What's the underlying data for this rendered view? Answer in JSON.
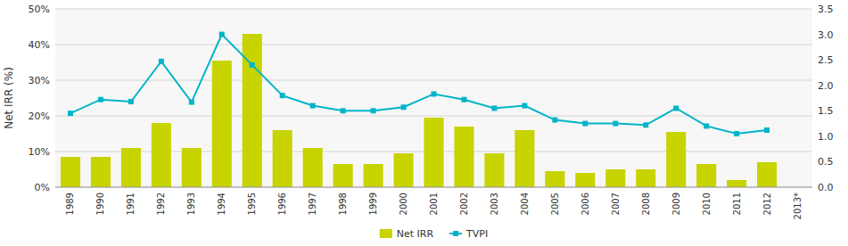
{
  "chart_data": {
    "type": "bar",
    "ylabel": "Net IRR (%)",
    "categories": [
      "1989",
      "1990",
      "1991",
      "1992",
      "1993",
      "1994",
      "1995",
      "1996",
      "1997",
      "1998",
      "1999",
      "2000",
      "2001",
      "2002",
      "2003",
      "2004",
      "2005",
      "2006",
      "2007",
      "2008",
      "2009",
      "2010",
      "2011",
      "2012",
      "2013*"
    ],
    "series": [
      {
        "name": "Net IRR",
        "type": "bar",
        "color": "#c8d400",
        "values": [
          8.5,
          8.5,
          11.0,
          18.0,
          11.0,
          35.5,
          43.0,
          16.0,
          11.0,
          6.5,
          6.5,
          9.5,
          19.5,
          17.0,
          9.5,
          16.0,
          4.5,
          4.0,
          5.0,
          5.0,
          15.5,
          6.5,
          2.0,
          7.0,
          null
        ]
      },
      {
        "name": "TVPI",
        "type": "line",
        "axis": "y2",
        "color": "#00b4c8",
        "marker": "square",
        "values": [
          1.45,
          1.72,
          1.68,
          2.47,
          1.67,
          3.0,
          2.4,
          1.8,
          1.6,
          1.5,
          1.5,
          1.57,
          1.83,
          1.72,
          1.55,
          1.6,
          1.32,
          1.25,
          1.25,
          1.22,
          1.55,
          1.2,
          1.05,
          1.12,
          null
        ]
      }
    ],
    "ylim": [
      0,
      50
    ],
    "yticks": [
      {
        "value": 0,
        "label": "0%"
      },
      {
        "value": 10,
        "label": "10%"
      },
      {
        "value": 20,
        "label": "20%"
      },
      {
        "value": 30,
        "label": "30%"
      },
      {
        "value": 40,
        "label": "40%"
      },
      {
        "value": 50,
        "label": "50%"
      }
    ],
    "y2lim": [
      0.0,
      3.5
    ],
    "y2ticks": [
      {
        "value": 0.0,
        "label": "0.0"
      },
      0.5,
      {
        "value": 1.0,
        "label": "1.0"
      },
      1.5,
      {
        "value": 2.0,
        "label": "2.0"
      },
      2.5,
      {
        "value": 3.0,
        "label": "3.0"
      },
      3.5
    ],
    "grid": true,
    "legend": "bottom"
  }
}
